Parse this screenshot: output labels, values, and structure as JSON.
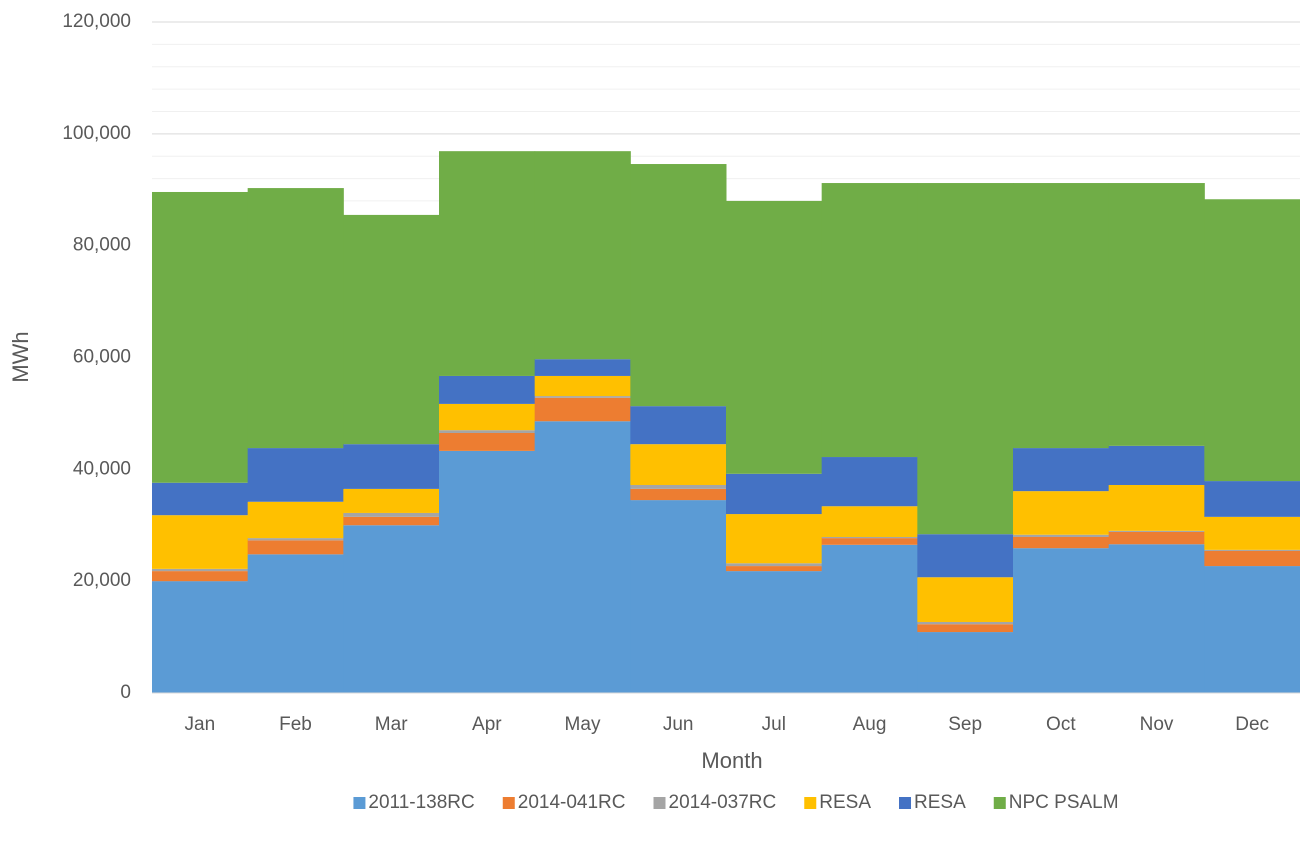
{
  "chart_data": {
    "type": "bar",
    "stacked": true,
    "x_label": "Month",
    "y_label": "MWh",
    "categories": [
      "Jan",
      "Feb",
      "Mar",
      "Apr",
      "May",
      "Jun",
      "Jul",
      "Aug",
      "Sep",
      "Oct",
      "Nov",
      "Dec"
    ],
    "series": [
      {
        "name": "2011-138RC",
        "color": "#5b9bd5",
        "values": [
          20000,
          24800,
          30000,
          43300,
          48600,
          34500,
          21800,
          26500,
          10900,
          25900,
          26600,
          22700
        ]
      },
      {
        "name": "2014-041RC",
        "color": "#ed7d31",
        "values": [
          1800,
          2500,
          1500,
          3200,
          4200,
          2000,
          900,
          1200,
          1400,
          2000,
          2200,
          2700
        ]
      },
      {
        "name": "2014-037RC",
        "color": "#a5a5a5",
        "values": [
          400,
          400,
          700,
          500,
          300,
          700,
          500,
          200,
          400,
          400,
          200,
          200
        ]
      },
      {
        "name": "RESA",
        "color": "#ffc000",
        "values": [
          9600,
          6500,
          4300,
          4700,
          3600,
          7300,
          8800,
          5500,
          8000,
          7800,
          8200,
          5900
        ]
      },
      {
        "name": "RESA",
        "color": "#4472c4",
        "values": [
          5800,
          9600,
          8000,
          5000,
          3000,
          6800,
          7200,
          8800,
          7700,
          7700,
          7000,
          6400
        ]
      },
      {
        "name": "NPC PSALM",
        "color": "#70ad47",
        "values": [
          52000,
          46500,
          41000,
          40200,
          37200,
          43300,
          48800,
          49000,
          62800,
          47400,
          47000,
          50400
        ]
      }
    ],
    "ylim": [
      0,
      120000
    ],
    "yticks": [
      {
        "value": 0,
        "label": "0"
      },
      {
        "value": 20000,
        "label": "20,000"
      },
      {
        "value": 40000,
        "label": "40,000"
      },
      {
        "value": 60000,
        "label": "60,000"
      },
      {
        "value": 80000,
        "label": "80,000"
      },
      {
        "value": 100000,
        "label": "100,000"
      },
      {
        "value": 120000,
        "label": "120,000"
      }
    ],
    "minor_yticks": [
      4000,
      8000,
      12000,
      16000,
      24000,
      28000,
      32000,
      36000,
      44000,
      48000,
      52000,
      56000,
      64000,
      68000,
      72000,
      76000,
      84000,
      88000,
      92000,
      96000,
      104000,
      108000,
      112000,
      116000
    ],
    "grid": true,
    "legend": "bottom"
  }
}
